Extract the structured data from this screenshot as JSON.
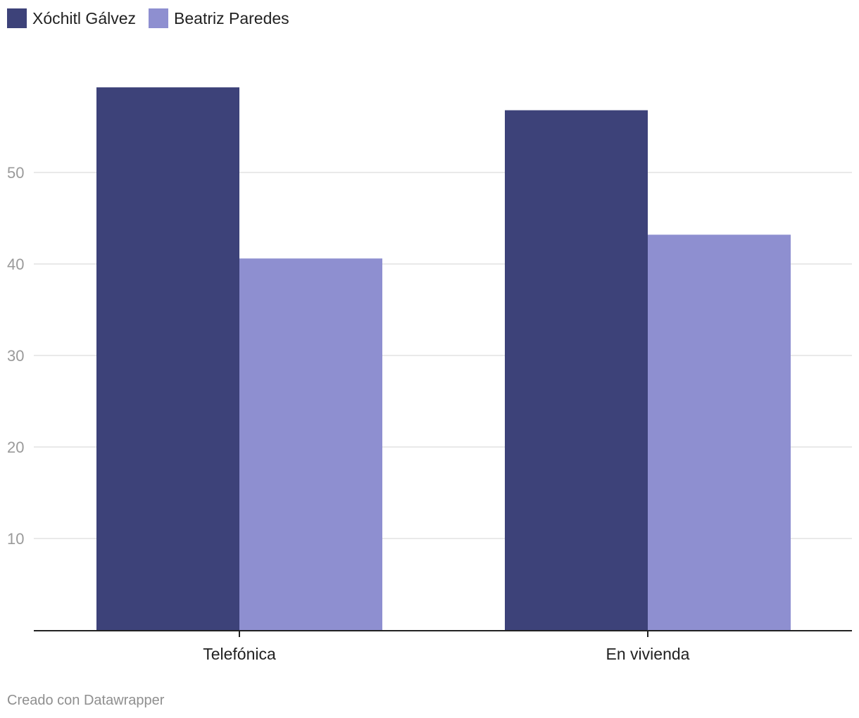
{
  "chart_data": {
    "type": "bar",
    "categories": [
      "Telefónica",
      "En vivienda"
    ],
    "series": [
      {
        "name": "Xóchitl Gálvez",
        "values": [
          59.3,
          56.8
        ],
        "color": "#3d4279"
      },
      {
        "name": "Beatriz Paredes",
        "values": [
          40.6,
          43.2
        ],
        "color": "#8e8fd0"
      }
    ],
    "yticks": [
      10,
      20,
      30,
      40,
      50
    ],
    "ylim": [
      0,
      60
    ],
    "grid": true,
    "legend_position": "top-left"
  },
  "footer": {
    "credit": "Creado con Datawrapper"
  }
}
